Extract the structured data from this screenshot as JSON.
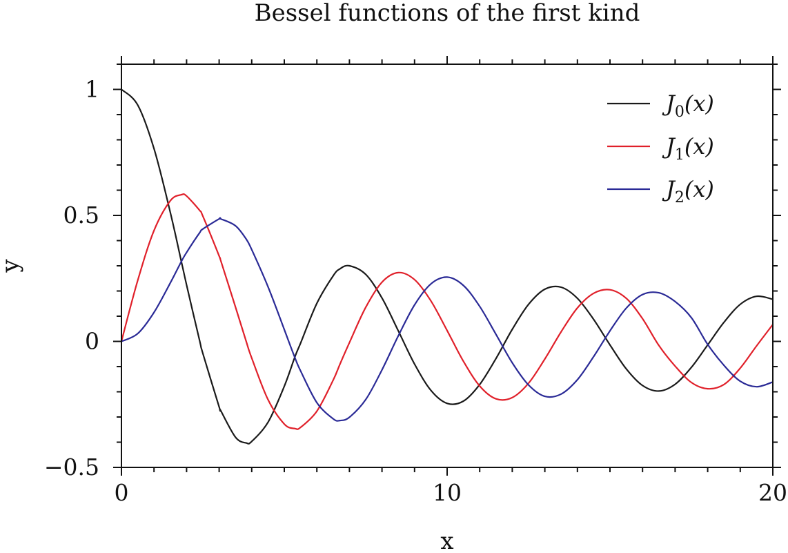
{
  "chart_data": {
    "type": "line",
    "title": "Bessel functions of the first kind",
    "xlabel": "x",
    "ylabel": "y",
    "xlim": [
      0,
      20
    ],
    "ylim": [
      -0.5,
      1.1
    ],
    "x_ticks": [
      0,
      10,
      20
    ],
    "x_tick_labels": [
      "0",
      "10",
      "20"
    ],
    "x_minor_step": 1,
    "y_ticks": [
      1,
      0.5,
      0,
      -0.5
    ],
    "y_tick_labels": [
      "1",
      "0.5",
      "0",
      "−0.5"
    ],
    "y_minor_step": 0.1,
    "grid": false,
    "legend_position": "top-right",
    "x": [
      0,
      0.5,
      1,
      1.5,
      1.84,
      2,
      2.4,
      2.5,
      3,
      3.05,
      3.5,
      3.83,
      4,
      4.5,
      5,
      5.33,
      5.5,
      6,
      6.5,
      6.71,
      7,
      7.5,
      8,
      8.5,
      9,
      9.5,
      10,
      10.5,
      11,
      11.5,
      12,
      12.5,
      13,
      13.5,
      14,
      14.5,
      15,
      15.5,
      16,
      16.5,
      17,
      17.5,
      18,
      18.5,
      19,
      19.5,
      20
    ],
    "series": [
      {
        "name": "J",
        "subscript": "0",
        "suffix": "(x)",
        "color": "#1a1a1a",
        "values": [
          1.0,
          0.938,
          0.765,
          0.512,
          0.317,
          0.224,
          0.003,
          -0.048,
          -0.26,
          -0.275,
          -0.38,
          -0.403,
          -0.397,
          -0.321,
          -0.178,
          -0.06,
          -0.007,
          0.151,
          0.26,
          0.288,
          0.3,
          0.266,
          0.172,
          0.042,
          -0.09,
          -0.194,
          -0.246,
          -0.237,
          -0.171,
          -0.068,
          0.048,
          0.147,
          0.207,
          0.215,
          0.171,
          0.087,
          -0.014,
          -0.109,
          -0.175,
          -0.197,
          -0.17,
          -0.103,
          -0.014,
          0.076,
          0.147,
          0.179,
          0.167
        ]
      },
      {
        "name": "J",
        "subscript": "1",
        "suffix": "(x)",
        "color": "#e0202a",
        "values": [
          0.0,
          0.242,
          0.44,
          0.558,
          0.582,
          0.577,
          0.52,
          0.497,
          0.339,
          0.32,
          0.137,
          0.0,
          -0.066,
          -0.231,
          -0.328,
          -0.346,
          -0.341,
          -0.277,
          -0.154,
          -0.09,
          -0.005,
          0.135,
          0.235,
          0.273,
          0.245,
          0.161,
          0.043,
          -0.079,
          -0.177,
          -0.228,
          -0.223,
          -0.166,
          -0.07,
          0.038,
          0.133,
          0.191,
          0.205,
          0.171,
          0.09,
          -0.016,
          -0.098,
          -0.163,
          -0.188,
          -0.171,
          -0.106,
          -0.018,
          0.067
        ]
      },
      {
        "name": "J",
        "subscript": "2",
        "suffix": "(x)",
        "color": "#2a2a96",
        "values": [
          0.0,
          0.031,
          0.115,
          0.232,
          0.317,
          0.353,
          0.431,
          0.446,
          0.486,
          0.486,
          0.459,
          0.406,
          0.364,
          0.217,
          0.047,
          -0.066,
          -0.117,
          -0.243,
          -0.307,
          -0.314,
          -0.301,
          -0.231,
          -0.113,
          0.022,
          0.145,
          0.228,
          0.255,
          0.222,
          0.139,
          0.028,
          -0.085,
          -0.173,
          -0.218,
          -0.209,
          -0.152,
          -0.06,
          0.042,
          0.132,
          0.186,
          0.193,
          0.158,
          0.094,
          -0.012,
          -0.095,
          -0.158,
          -0.18,
          -0.161
        ]
      }
    ]
  }
}
